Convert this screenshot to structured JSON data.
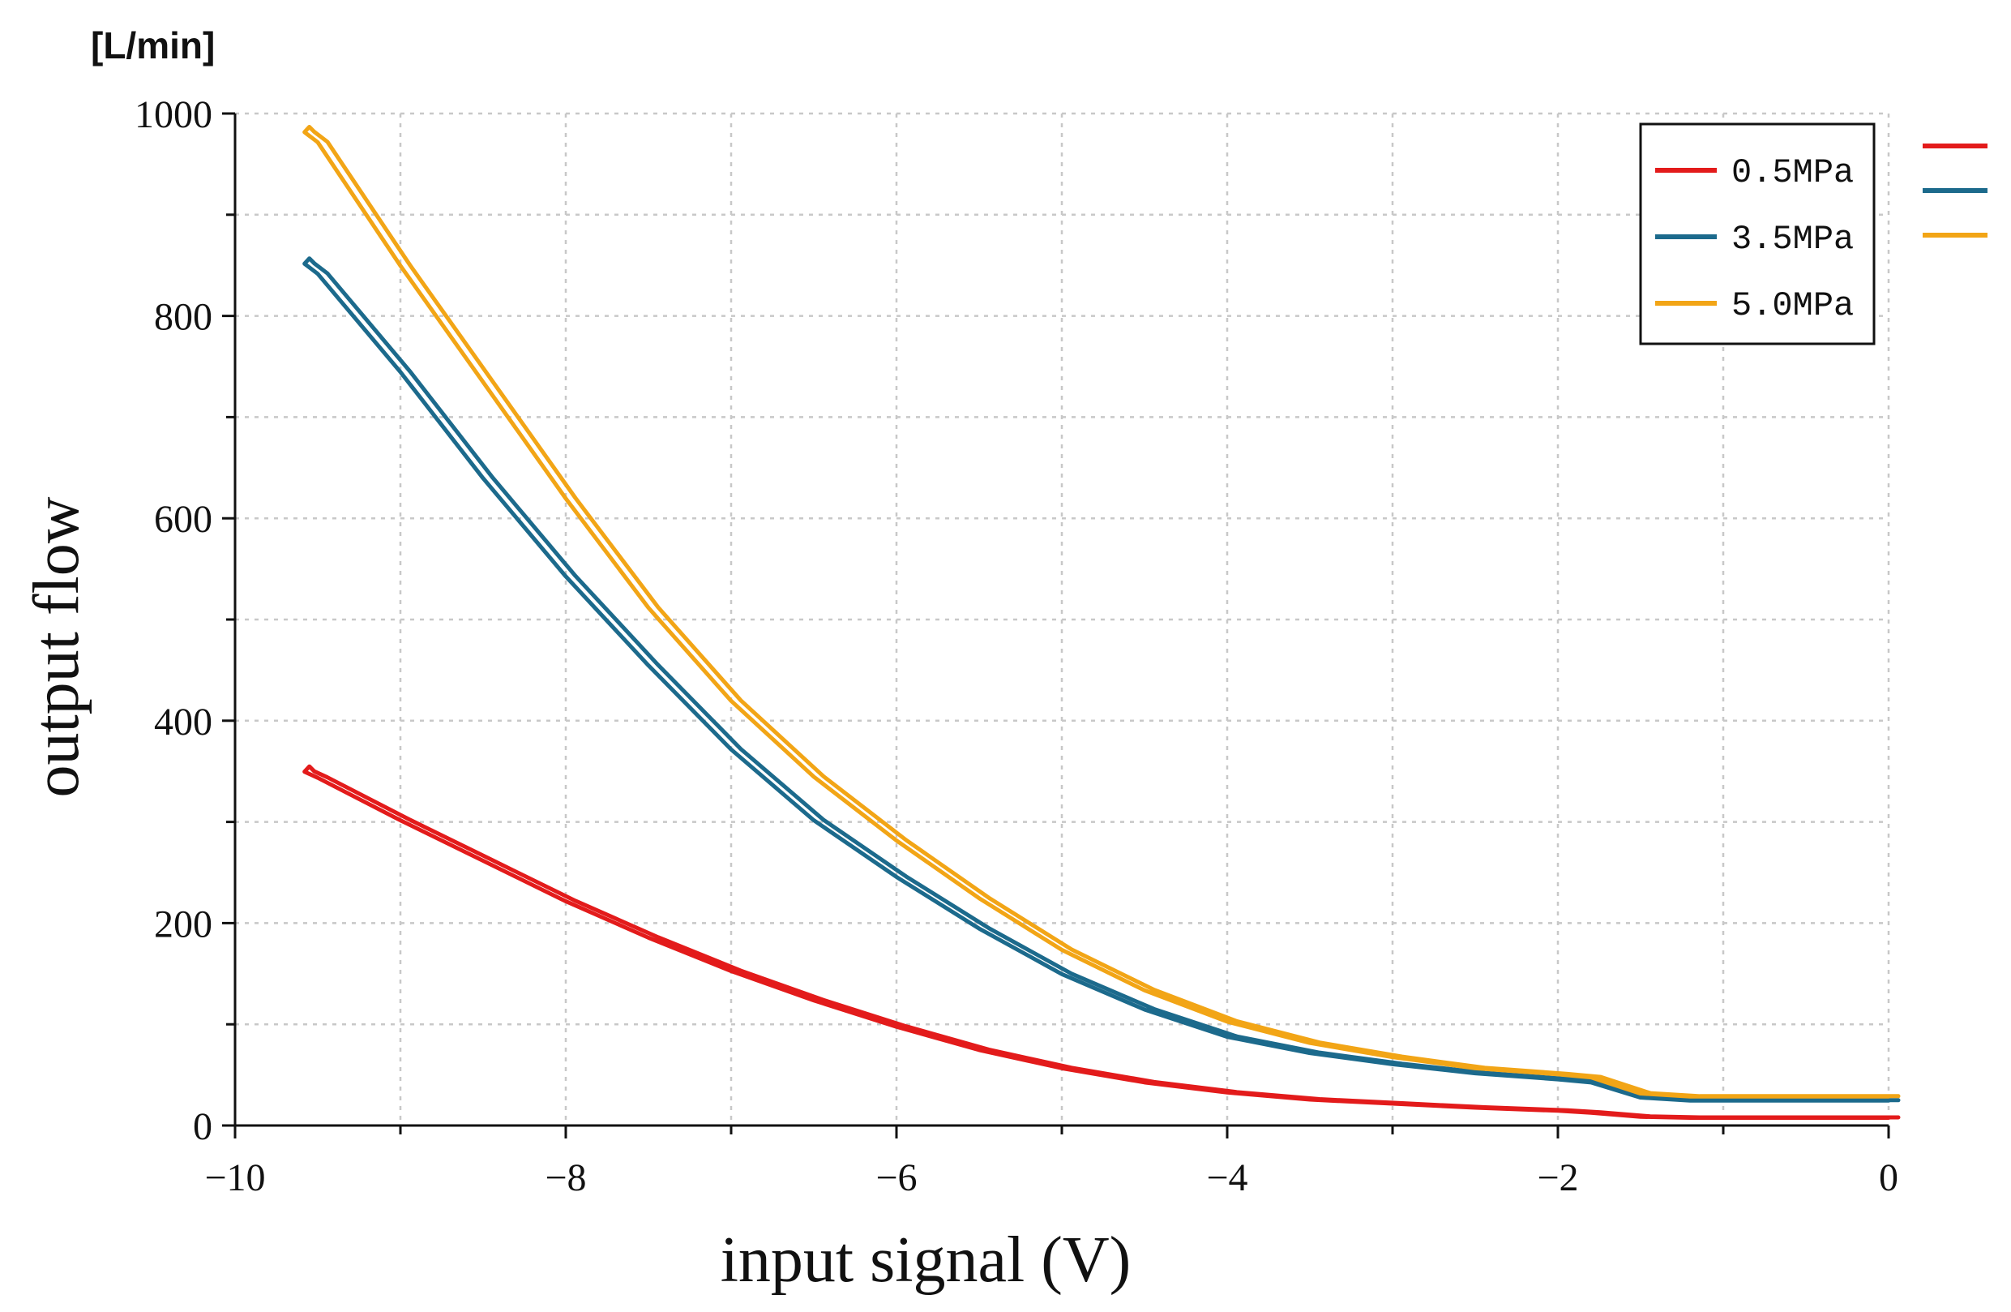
{
  "chart_data": {
    "type": "line",
    "title": "",
    "unit_label": "[L/min]",
    "xlabel": "input signal (V)",
    "ylabel": "output flow",
    "xlim": [
      -10,
      0
    ],
    "ylim": [
      0,
      1000
    ],
    "x_ticks": [
      -10,
      -8,
      -6,
      -4,
      -2,
      0
    ],
    "x_tick_labels": [
      "−10",
      "−8",
      "−6",
      "−4",
      "−2",
      "0"
    ],
    "y_ticks": [
      0,
      200,
      400,
      600,
      800,
      1000
    ],
    "y_tick_labels": [
      "0",
      "200",
      "400",
      "600",
      "800",
      "1000"
    ],
    "grid": true,
    "legend_position": "top-right",
    "series": [
      {
        "name": "0.5MPa",
        "color": "#e31b1b",
        "loop_width": 12,
        "x": [
          -9.58,
          -9.5,
          -9,
          -8.5,
          -8,
          -7.5,
          -7,
          -6.5,
          -6,
          -5.5,
          -5,
          -4.5,
          -4,
          -3.5,
          -3,
          -2.5,
          -2,
          -1.8,
          -1.5,
          -1.2,
          -1,
          -0.5,
          0
        ],
        "y": [
          350,
          344,
          302,
          262,
          222,
          186,
          153,
          124,
          98,
          75,
          57,
          43,
          33,
          26,
          22,
          18,
          15,
          13,
          9,
          8,
          8,
          8,
          8
        ]
      },
      {
        "name": "3.5MPa",
        "color": "#1c6a8c",
        "loop_width": 12,
        "x": [
          -9.58,
          -9.5,
          -9,
          -8.5,
          -8,
          -7.5,
          -7,
          -6.5,
          -6,
          -5.5,
          -5,
          -4.5,
          -4,
          -3.5,
          -3,
          -2.5,
          -2,
          -1.8,
          -1.5,
          -1.2,
          -1,
          -0.5,
          0
        ],
        "y": [
          852,
          842,
          745,
          640,
          543,
          455,
          372,
          302,
          246,
          195,
          150,
          115,
          88,
          72,
          61,
          52,
          46,
          43,
          28,
          25,
          25,
          25,
          25
        ]
      },
      {
        "name": "5.0MPa",
        "color": "#f2a516",
        "loop_width": 12,
        "x": [
          -9.58,
          -9.5,
          -9,
          -8.5,
          -8,
          -7.5,
          -7,
          -6.5,
          -6,
          -5.5,
          -5,
          -4.5,
          -4,
          -3.5,
          -3,
          -2.5,
          -2,
          -1.8,
          -1.5,
          -1.2,
          -1,
          -0.5,
          0
        ],
        "y": [
          982,
          972,
          850,
          735,
          620,
          512,
          420,
          345,
          282,
          225,
          174,
          134,
          103,
          82,
          68,
          57,
          51,
          48,
          32,
          29,
          29,
          29,
          29
        ]
      }
    ]
  }
}
